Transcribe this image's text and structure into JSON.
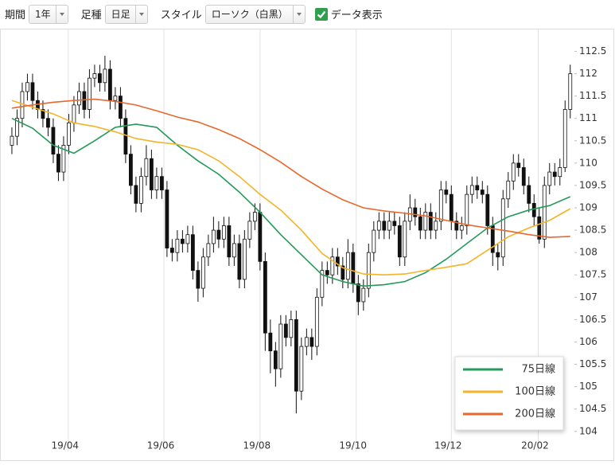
{
  "toolbar": {
    "period_label": "期間",
    "period": "1年",
    "bar_label": "足種",
    "bar": "日足",
    "style_label": "スタイル",
    "style": "ローソク（白黒）",
    "show_data": "データ表示",
    "show_data_checked": true
  },
  "chart_data": {
    "type": "candlestick",
    "xlim": [
      -2.3,
      108.5
    ],
    "xticks": [
      {
        "value": 10.9,
        "label": "19/04"
      },
      {
        "value": 29.4,
        "label": "19/06"
      },
      {
        "value": 48,
        "label": "19/08"
      },
      {
        "value": 66.6,
        "label": "19/10"
      },
      {
        "value": 85,
        "label": "19/12"
      },
      {
        "value": 101.8,
        "label": "20/02"
      }
    ],
    "ylim": [
      103.8,
      112.9
    ],
    "yticks": [
      104,
      104.5,
      105,
      105.5,
      106,
      106.5,
      107,
      107.5,
      108,
      108.5,
      109,
      109.5,
      110,
      110.5,
      111,
      111.5,
      112,
      112.5
    ],
    "grid": true,
    "candles": {
      "open": [
        110.4,
        110.6,
        111.0,
        111.6,
        111.8,
        111.4,
        111.2,
        111.0,
        110.8,
        110.2,
        109.8,
        110.4,
        110.9,
        111.3,
        111.6,
        111.2,
        111.9,
        112.0,
        111.8,
        112.1,
        111.4,
        111.5,
        111.0,
        110.2,
        109.5,
        109.1,
        109.7,
        110.1,
        109.4,
        109.7,
        109.4,
        108.1,
        108.0,
        108.3,
        108.2,
        108.4,
        107.6,
        107.2,
        107.9,
        108.2,
        108.5,
        108.3,
        108.6,
        107.9,
        108.2,
        107.4,
        108.3,
        108.7,
        108.9,
        107.8,
        106.2,
        105.8,
        105.4,
        106.4,
        106.1,
        106.5,
        104.9,
        105.9,
        106.1,
        105.9,
        107.0,
        107.6,
        107.5,
        107.9,
        107.7,
        107.4,
        108.0,
        107.3,
        106.9,
        107.2,
        108.0,
        108.5,
        108.7,
        108.5,
        108.7,
        108.6,
        107.9,
        108.7,
        109.0,
        108.8,
        108.5,
        108.9,
        108.5,
        108.7,
        109.4,
        109.3,
        108.7,
        108.5,
        108.6,
        109.3,
        109.5,
        109.4,
        109.3,
        108.6,
        108.0,
        107.9,
        109.2,
        109.6,
        110.0,
        109.9,
        109.5,
        109.1,
        108.8,
        108.3,
        109.5,
        109.8,
        109.7,
        109.9,
        111.2
      ],
      "high": [
        110.8,
        111.2,
        111.8,
        112.0,
        112.0,
        111.6,
        111.4,
        111.2,
        111.0,
        110.4,
        110.6,
        111.1,
        111.5,
        111.8,
        111.8,
        112.1,
        112.2,
        112.2,
        112.4,
        112.3,
        111.7,
        111.7,
        111.2,
        110.4,
        109.7,
        109.9,
        110.4,
        110.3,
        109.9,
        109.9,
        109.6,
        108.3,
        108.5,
        108.5,
        108.6,
        108.6,
        107.8,
        108.1,
        108.4,
        108.8,
        108.7,
        108.8,
        108.8,
        108.4,
        108.4,
        108.5,
        108.9,
        109.1,
        109.1,
        108.0,
        106.5,
        106.0,
        106.6,
        106.6,
        106.7,
        106.7,
        106.1,
        106.3,
        106.3,
        107.2,
        107.8,
        107.8,
        108.1,
        108.1,
        107.9,
        108.3,
        108.2,
        107.5,
        107.4,
        108.2,
        108.7,
        108.9,
        108.9,
        108.9,
        108.9,
        108.8,
        108.9,
        109.3,
        109.2,
        109.0,
        109.1,
        109.1,
        108.9,
        109.6,
        109.6,
        109.5,
        108.9,
        108.8,
        109.5,
        109.7,
        109.7,
        109.6,
        109.5,
        108.8,
        108.2,
        109.4,
        109.8,
        110.2,
        110.2,
        110.1,
        109.7,
        109.3,
        109.0,
        109.7,
        110.0,
        110.0,
        110.1,
        111.4,
        112.2
      ],
      "low": [
        110.2,
        110.4,
        110.8,
        111.4,
        111.2,
        111.0,
        110.8,
        110.6,
        110.0,
        109.6,
        109.6,
        110.2,
        110.7,
        111.1,
        111.0,
        111.0,
        111.7,
        111.6,
        111.6,
        111.2,
        111.2,
        110.8,
        110.0,
        109.3,
        108.9,
        108.9,
        109.5,
        109.2,
        109.2,
        109.2,
        107.9,
        107.8,
        107.8,
        108.0,
        108.0,
        107.4,
        106.9,
        107.0,
        107.7,
        108.0,
        108.1,
        108.1,
        107.7,
        107.7,
        107.2,
        107.2,
        108.1,
        108.5,
        107.6,
        105.8,
        105.3,
        105.0,
        105.2,
        105.9,
        105.9,
        104.4,
        104.7,
        105.7,
        105.6,
        105.7,
        106.8,
        107.3,
        107.3,
        107.5,
        107.2,
        107.2,
        107.1,
        106.6,
        106.7,
        107.0,
        107.8,
        108.3,
        108.3,
        108.3,
        108.4,
        107.7,
        107.7,
        108.5,
        108.6,
        108.3,
        108.3,
        108.3,
        108.3,
        108.5,
        109.1,
        108.5,
        108.3,
        108.3,
        108.4,
        109.1,
        109.2,
        109.1,
        108.4,
        107.7,
        107.6,
        107.7,
        109.0,
        109.4,
        109.7,
        109.3,
        108.9,
        108.6,
        108.2,
        108.1,
        109.3,
        109.5,
        109.5,
        109.8,
        111.0
      ],
      "close": [
        110.6,
        111.0,
        111.6,
        111.8,
        111.4,
        111.2,
        111.0,
        110.8,
        110.2,
        109.8,
        110.4,
        110.9,
        111.3,
        111.6,
        111.2,
        111.9,
        112.0,
        111.8,
        112.1,
        111.4,
        111.5,
        111.0,
        110.2,
        109.5,
        109.1,
        109.7,
        110.1,
        109.4,
        109.7,
        109.4,
        108.1,
        108.0,
        108.3,
        108.2,
        108.4,
        107.6,
        107.2,
        107.9,
        108.2,
        108.5,
        108.3,
        108.6,
        107.9,
        108.2,
        107.4,
        108.3,
        108.7,
        108.9,
        107.8,
        106.2,
        105.8,
        105.4,
        106.4,
        106.1,
        106.5,
        104.9,
        105.9,
        106.1,
        105.9,
        107.0,
        107.6,
        107.5,
        107.9,
        107.7,
        107.4,
        108.0,
        107.3,
        106.9,
        107.2,
        108.0,
        108.5,
        108.7,
        108.5,
        108.7,
        108.6,
        107.9,
        108.7,
        109.0,
        108.8,
        108.5,
        108.9,
        108.5,
        108.7,
        109.4,
        109.3,
        108.7,
        108.5,
        108.6,
        109.3,
        109.5,
        109.4,
        109.3,
        108.6,
        108.0,
        107.9,
        109.2,
        109.6,
        110.0,
        109.9,
        109.5,
        109.1,
        108.8,
        108.3,
        109.5,
        109.8,
        109.7,
        109.9,
        111.2,
        112.0
      ]
    },
    "series": [
      {
        "name": "75日線",
        "color": "#23995a",
        "x": [
          0,
          4,
          8,
          12,
          16,
          20,
          24,
          28,
          32,
          36,
          40,
          44,
          48,
          52,
          56,
          60,
          64,
          68,
          72,
          76,
          80,
          84,
          88,
          92,
          96,
          100,
          104,
          108
        ],
        "values": [
          111.0,
          110.78,
          110.4,
          110.22,
          110.5,
          110.8,
          110.87,
          110.8,
          110.4,
          110.05,
          109.75,
          109.35,
          108.9,
          108.4,
          107.95,
          107.5,
          107.35,
          107.25,
          107.28,
          107.35,
          107.55,
          107.85,
          108.2,
          108.55,
          108.8,
          108.95,
          109.05,
          109.25
        ]
      },
      {
        "name": "100日線",
        "color": "#f4b329",
        "x": [
          0,
          4,
          8,
          12,
          16,
          20,
          24,
          28,
          32,
          36,
          40,
          44,
          48,
          52,
          56,
          60,
          64,
          68,
          72,
          76,
          80,
          84,
          88,
          92,
          96,
          100,
          104,
          108
        ],
        "values": [
          111.4,
          111.25,
          111.1,
          110.9,
          110.82,
          110.7,
          110.55,
          110.47,
          110.42,
          110.3,
          110.05,
          109.7,
          109.3,
          108.95,
          108.5,
          107.98,
          107.66,
          107.52,
          107.5,
          107.52,
          107.6,
          107.67,
          107.75,
          108.05,
          108.35,
          108.55,
          108.72,
          108.98
        ]
      },
      {
        "name": "200日線",
        "color": "#e8682c",
        "x": [
          0,
          4,
          8,
          12,
          16,
          20,
          24,
          28,
          32,
          36,
          40,
          44,
          48,
          52,
          56,
          60,
          64,
          68,
          72,
          76,
          80,
          84,
          88,
          92,
          96,
          100,
          104,
          108
        ],
        "values": [
          111.23,
          111.3,
          111.36,
          111.4,
          111.43,
          111.38,
          111.3,
          111.17,
          111.03,
          110.92,
          110.75,
          110.55,
          110.3,
          110.02,
          109.7,
          109.42,
          109.18,
          109.0,
          108.93,
          108.88,
          108.82,
          108.72,
          108.62,
          108.55,
          108.48,
          108.4,
          108.34,
          108.36
        ]
      }
    ]
  }
}
